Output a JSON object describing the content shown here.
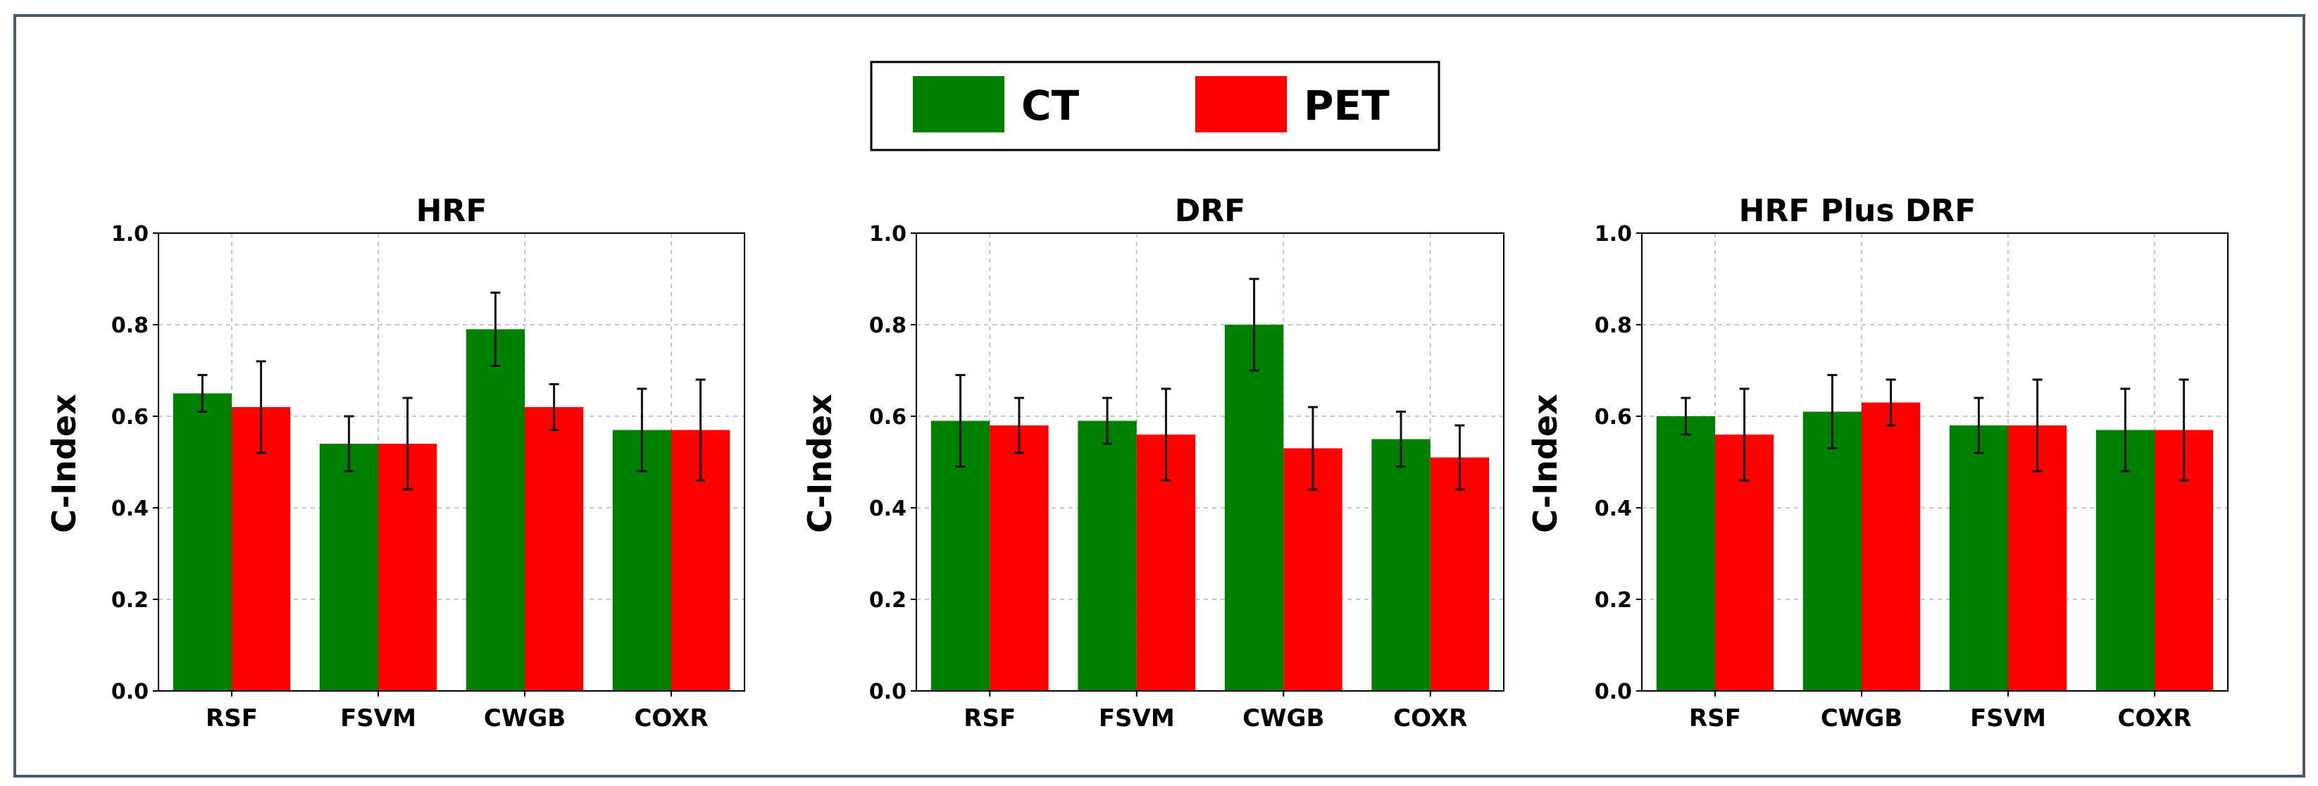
{
  "legend": {
    "items": [
      {
        "label": "CT",
        "color": "#008000"
      },
      {
        "label": "PET",
        "color": "#ff0000"
      }
    ]
  },
  "chart_data": [
    {
      "type": "bar",
      "title": "HRF",
      "xlabel": "",
      "ylabel": "C-Index",
      "ylim": [
        0.0,
        1.0
      ],
      "yticks": [
        "0.0",
        "0.2",
        "0.4",
        "0.6",
        "0.8",
        "1.0"
      ],
      "grid": true,
      "categories": [
        "RSF",
        "FSVM",
        "CWGB",
        "COXR"
      ],
      "series": [
        {
          "name": "CT",
          "color": "#008000",
          "values": [
            0.65,
            0.54,
            0.79,
            0.57
          ],
          "errors": [
            0.04,
            0.06,
            0.08,
            0.09
          ]
        },
        {
          "name": "PET",
          "color": "#ff0000",
          "values": [
            0.62,
            0.54,
            0.62,
            0.57
          ],
          "errors": [
            0.1,
            0.1,
            0.05,
            0.11
          ]
        }
      ]
    },
    {
      "type": "bar",
      "title": "DRF",
      "xlabel": "",
      "ylabel": "C-Index",
      "ylim": [
        0.0,
        1.0
      ],
      "yticks": [
        "0.0",
        "0.2",
        "0.4",
        "0.6",
        "0.8",
        "1.0"
      ],
      "grid": true,
      "categories": [
        "RSF",
        "FSVM",
        "CWGB",
        "COXR"
      ],
      "series": [
        {
          "name": "CT",
          "color": "#008000",
          "values": [
            0.59,
            0.59,
            0.8,
            0.55
          ],
          "errors": [
            0.1,
            0.05,
            0.1,
            0.06
          ]
        },
        {
          "name": "PET",
          "color": "#ff0000",
          "values": [
            0.58,
            0.56,
            0.53,
            0.51
          ],
          "errors": [
            0.06,
            0.1,
            0.09,
            0.07
          ]
        }
      ]
    },
    {
      "type": "bar",
      "title": "HRF Plus DRF",
      "xlabel": "",
      "ylabel": "C-Index",
      "ylim": [
        0.0,
        1.0
      ],
      "yticks": [
        "0.0",
        "0.2",
        "0.4",
        "0.6",
        "0.8",
        "1.0"
      ],
      "grid": true,
      "categories": [
        "RSF",
        "CWGB",
        "FSVM",
        "COXR"
      ],
      "series": [
        {
          "name": "CT",
          "color": "#008000",
          "values": [
            0.6,
            0.61,
            0.58,
            0.57
          ],
          "errors": [
            0.04,
            0.08,
            0.06,
            0.09
          ]
        },
        {
          "name": "PET",
          "color": "#ff0000",
          "values": [
            0.56,
            0.63,
            0.58,
            0.57
          ],
          "errors": [
            0.1,
            0.05,
            0.1,
            0.11
          ]
        }
      ]
    }
  ]
}
